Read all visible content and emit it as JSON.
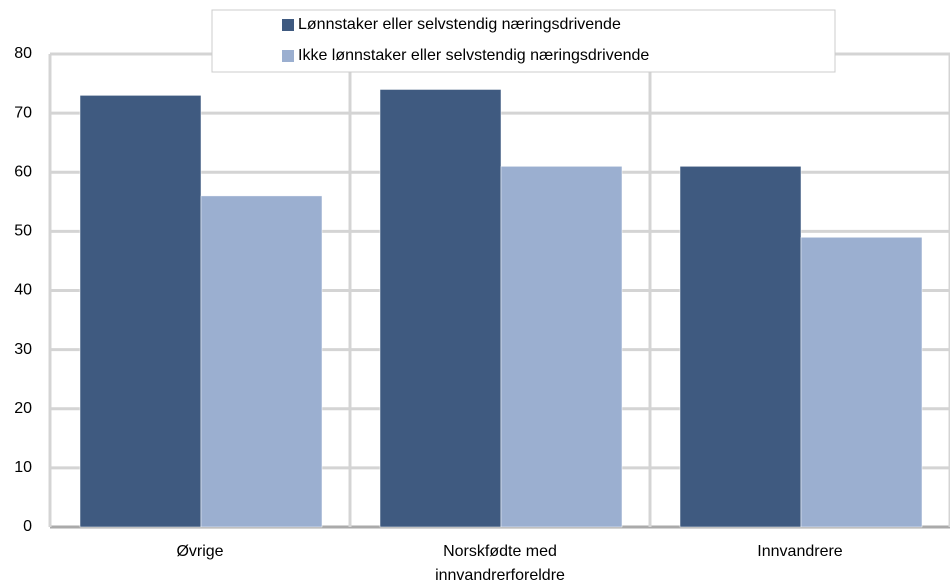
{
  "chart_data": {
    "type": "bar",
    "categories": [
      "Øvrige",
      "Norskfødte med innvandrerforeldre",
      "Innvandrere"
    ],
    "series": [
      {
        "name": "Lønnstaker eller selvstendig næringsdrivende",
        "color": "#3f5a80",
        "values": [
          73,
          74,
          61
        ]
      },
      {
        "name": "Ikke lønnstaker eller selvstendig næringsdrivende",
        "color": "#9bafd0",
        "values": [
          56,
          61,
          49
        ]
      }
    ],
    "ylim": [
      0,
      80
    ],
    "yticks": [
      0,
      10,
      20,
      30,
      40,
      50,
      60,
      70,
      80
    ],
    "grid": true,
    "legend": "top"
  }
}
